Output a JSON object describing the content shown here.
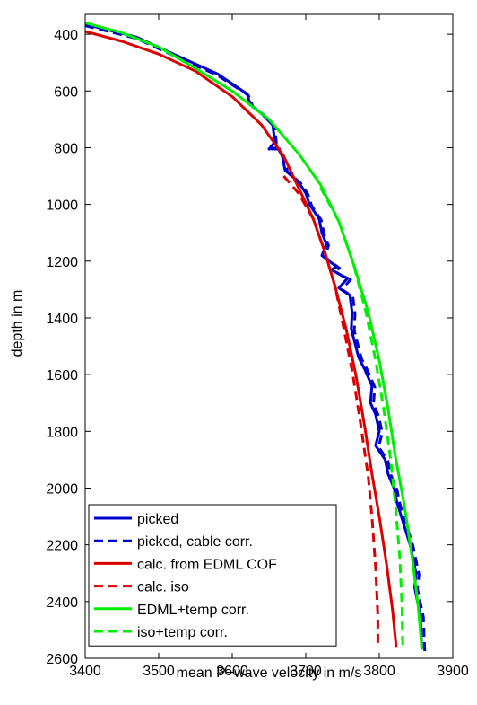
{
  "chart_data": {
    "type": "line",
    "title": "",
    "xlabel": "mean P−wave velocity in m/s",
    "ylabel": "depth in m",
    "xlim": [
      3400,
      3900
    ],
    "ylim": [
      330,
      2600
    ],
    "y_reversed": true,
    "grid": false,
    "legend_position": "bottom-left",
    "x_ticks": [
      "3400",
      "3500",
      "3600",
      "3700",
      "3800",
      "3900"
    ],
    "y_ticks": [
      "400",
      "600",
      "800",
      "1000",
      "1200",
      "1400",
      "1600",
      "1800",
      "2000",
      "2200",
      "2400",
      "2600"
    ],
    "series": [
      {
        "name": "picked",
        "color": "#0000cc",
        "dash": "solid",
        "points": [
          [
            3400,
            365
          ],
          [
            3470,
            410
          ],
          [
            3520,
            470
          ],
          [
            3580,
            540
          ],
          [
            3620,
            610
          ],
          [
            3625,
            650
          ],
          [
            3640,
            680
          ],
          [
            3655,
            720
          ],
          [
            3658,
            780
          ],
          [
            3650,
            805
          ],
          [
            3662,
            800
          ],
          [
            3668,
            830
          ],
          [
            3672,
            880
          ],
          [
            3690,
            920
          ],
          [
            3700,
            960
          ],
          [
            3705,
            1000
          ],
          [
            3718,
            1050
          ],
          [
            3722,
            1100
          ],
          [
            3728,
            1140
          ],
          [
            3722,
            1180
          ],
          [
            3742,
            1220
          ],
          [
            3735,
            1230
          ],
          [
            3748,
            1250
          ],
          [
            3757,
            1260
          ],
          [
            3745,
            1295
          ],
          [
            3760,
            1320
          ],
          [
            3763,
            1380
          ],
          [
            3762,
            1440
          ],
          [
            3768,
            1500
          ],
          [
            3772,
            1540
          ],
          [
            3780,
            1580
          ],
          [
            3790,
            1640
          ],
          [
            3788,
            1700
          ],
          [
            3795,
            1740
          ],
          [
            3800,
            1800
          ],
          [
            3795,
            1850
          ],
          [
            3808,
            1900
          ],
          [
            3812,
            1950
          ],
          [
            3820,
            2000
          ],
          [
            3824,
            2050
          ],
          [
            3830,
            2100
          ],
          [
            3836,
            2150
          ],
          [
            3842,
            2200
          ],
          [
            3846,
            2250
          ],
          [
            3850,
            2300
          ],
          [
            3848,
            2350
          ],
          [
            3852,
            2400
          ],
          [
            3856,
            2450
          ],
          [
            3857,
            2520
          ],
          [
            3858,
            2570
          ]
        ]
      },
      {
        "name": "picked, cable corr.",
        "color": "#0000cc",
        "dash": "dashed",
        "points": [
          [
            3400,
            370
          ],
          [
            3470,
            415
          ],
          [
            3520,
            475
          ],
          [
            3580,
            545
          ],
          [
            3622,
            615
          ],
          [
            3628,
            655
          ],
          [
            3643,
            685
          ],
          [
            3658,
            725
          ],
          [
            3660,
            785
          ],
          [
            3654,
            805
          ],
          [
            3665,
            805
          ],
          [
            3671,
            835
          ],
          [
            3675,
            885
          ],
          [
            3693,
            925
          ],
          [
            3703,
            965
          ],
          [
            3708,
            1005
          ],
          [
            3721,
            1055
          ],
          [
            3725,
            1105
          ],
          [
            3731,
            1145
          ],
          [
            3726,
            1185
          ],
          [
            3746,
            1225
          ],
          [
            3739,
            1235
          ],
          [
            3752,
            1255
          ],
          [
            3761,
            1265
          ],
          [
            3749,
            1300
          ],
          [
            3764,
            1325
          ],
          [
            3767,
            1385
          ],
          [
            3766,
            1445
          ],
          [
            3772,
            1505
          ],
          [
            3776,
            1545
          ],
          [
            3784,
            1585
          ],
          [
            3794,
            1645
          ],
          [
            3792,
            1705
          ],
          [
            3799,
            1745
          ],
          [
            3804,
            1805
          ],
          [
            3799,
            1855
          ],
          [
            3812,
            1905
          ],
          [
            3816,
            1955
          ],
          [
            3824,
            2005
          ],
          [
            3828,
            2055
          ],
          [
            3834,
            2105
          ],
          [
            3840,
            2155
          ],
          [
            3846,
            2205
          ],
          [
            3850,
            2255
          ],
          [
            3854,
            2305
          ],
          [
            3852,
            2355
          ],
          [
            3856,
            2405
          ],
          [
            3860,
            2455
          ],
          [
            3861,
            2525
          ],
          [
            3862,
            2575
          ]
        ]
      },
      {
        "name": "calc. from EDML COF",
        "color": "#dd0000",
        "dash": "solid",
        "points": [
          [
            3400,
            390
          ],
          [
            3450,
            425
          ],
          [
            3500,
            470
          ],
          [
            3550,
            530
          ],
          [
            3600,
            620
          ],
          [
            3640,
            720
          ],
          [
            3670,
            830
          ],
          [
            3690,
            940
          ],
          [
            3710,
            1050
          ],
          [
            3725,
            1160
          ],
          [
            3740,
            1290
          ],
          [
            3755,
            1440
          ],
          [
            3768,
            1600
          ],
          [
            3780,
            1780
          ],
          [
            3790,
            1950
          ],
          [
            3800,
            2100
          ],
          [
            3810,
            2270
          ],
          [
            3818,
            2430
          ],
          [
            3823,
            2560
          ]
        ]
      },
      {
        "name": "calc. iso",
        "color": "#dd0000",
        "dash": "dashed",
        "points": [
          [
            3670,
            900
          ],
          [
            3690,
            960
          ],
          [
            3710,
            1050
          ],
          [
            3725,
            1160
          ],
          [
            3740,
            1290
          ],
          [
            3752,
            1440
          ],
          [
            3764,
            1600
          ],
          [
            3775,
            1780
          ],
          [
            3785,
            1960
          ],
          [
            3790,
            2100
          ],
          [
            3795,
            2280
          ],
          [
            3798,
            2450
          ],
          [
            3798,
            2560
          ]
        ]
      },
      {
        "name": "EDML+temp corr.",
        "color": "#00ee00",
        "dash": "solid",
        "points": [
          [
            3400,
            360
          ],
          [
            3450,
            395
          ],
          [
            3500,
            445
          ],
          [
            3550,
            520
          ],
          [
            3600,
            600
          ],
          [
            3650,
            700
          ],
          [
            3690,
            820
          ],
          [
            3720,
            930
          ],
          [
            3745,
            1060
          ],
          [
            3765,
            1210
          ],
          [
            3785,
            1380
          ],
          [
            3800,
            1550
          ],
          [
            3812,
            1720
          ],
          [
            3822,
            1890
          ],
          [
            3834,
            2060
          ],
          [
            3845,
            2250
          ],
          [
            3853,
            2420
          ],
          [
            3858,
            2570
          ]
        ]
      },
      {
        "name": "iso+temp corr.",
        "color": "#00ee00",
        "dash": "dashed",
        "points": [
          [
            3720,
            940
          ],
          [
            3745,
            1060
          ],
          [
            3765,
            1210
          ],
          [
            3782,
            1380
          ],
          [
            3795,
            1550
          ],
          [
            3806,
            1720
          ],
          [
            3815,
            1890
          ],
          [
            3822,
            2060
          ],
          [
            3828,
            2250
          ],
          [
            3831,
            2420
          ],
          [
            3832,
            2560
          ]
        ]
      }
    ]
  }
}
